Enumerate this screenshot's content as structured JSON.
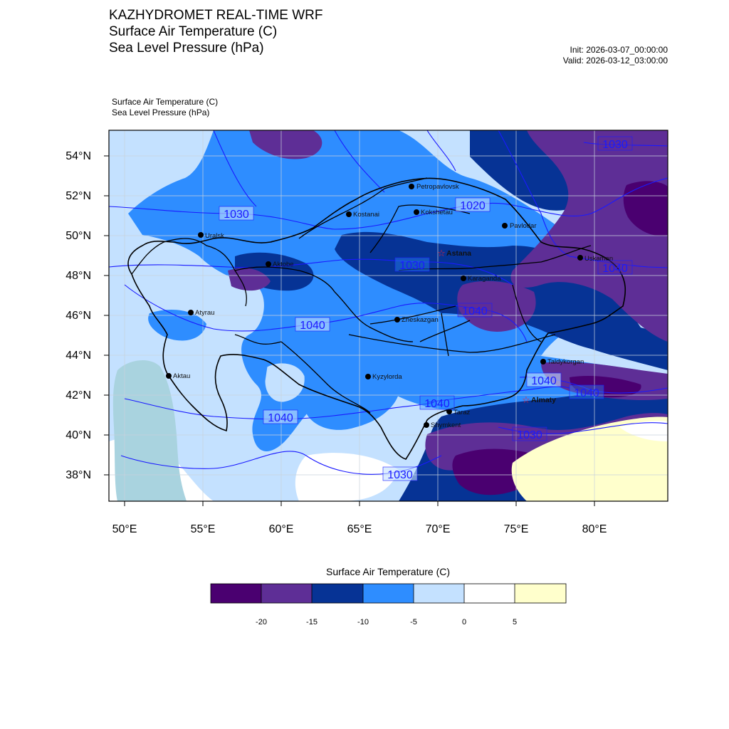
{
  "header": {
    "title_lines": [
      "KAZHYDROMET REAL-TIME WRF",
      "Surface Air Temperature  (C)",
      "Sea Level Pressure  (hPa)"
    ],
    "init": "Init: 2026-03-07_00:00:00",
    "valid": "Valid: 2026-03-12_03:00:00",
    "sub_lines": [
      "Surface Air Temperature   (C)",
      "Sea Level Pressure   (hPa)"
    ]
  },
  "map": {
    "lat_labels": [
      "54°N",
      "52°N",
      "50°N",
      "48°N",
      "46°N",
      "44°N",
      "42°N",
      "40°N",
      "38°N"
    ],
    "lon_labels": [
      "50°E",
      "55°E",
      "60°E",
      "65°E",
      "70°E",
      "75°E",
      "80°E"
    ],
    "cities": [
      {
        "name": "Petropavlovsk",
        "capital": false
      },
      {
        "name": "Kostanai",
        "capital": false
      },
      {
        "name": "Kokshetau",
        "capital": false
      },
      {
        "name": "Pavlodar",
        "capital": false
      },
      {
        "name": "Uralsk",
        "capital": false
      },
      {
        "name": "Astana",
        "capital": true
      },
      {
        "name": "Aktobe",
        "capital": false
      },
      {
        "name": "Ust-Kamenogorsk",
        "capital": false,
        "display": "Uskamen"
      },
      {
        "name": "Karaganda",
        "capital": false
      },
      {
        "name": "Atyrau",
        "capital": false
      },
      {
        "name": "Zheskazgan",
        "capital": false
      },
      {
        "name": "Taldykorgan",
        "capital": false
      },
      {
        "name": "Aktau",
        "capital": false
      },
      {
        "name": "Kyzylorda",
        "capital": false
      },
      {
        "name": "Almaty",
        "capital": true
      },
      {
        "name": "Taraz",
        "capital": false
      },
      {
        "name": "Shymkent",
        "capital": false
      }
    ],
    "isobar_labels": [
      "1030",
      "1020",
      "1030",
      "1030",
      "1040",
      "1040",
      "1040",
      "1040",
      "1040",
      "1030",
      "1040",
      "1030",
      "1040",
      "1030"
    ]
  },
  "colorbar": {
    "title": "Surface Air Temperature (C)",
    "colors": [
      "#4a0070",
      "#5e2e96",
      "#063395",
      "#2e8dff",
      "#c4e1ff",
      "#ffffff",
      "#ffffcc"
    ],
    "tick_labels": [
      "-20",
      "-15",
      "-10",
      "-5",
      "0",
      "5"
    ]
  },
  "colors": {
    "isobar": "#1a1aff",
    "border": "#000000",
    "city_dot": "#000000",
    "capital_star": "#e8223a",
    "caspian": "#a9d3df"
  }
}
